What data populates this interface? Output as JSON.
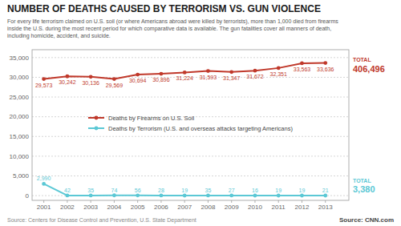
{
  "chart_data": {
    "type": "line",
    "title": "NUMBER OF DEATHS CAUSED BY TERRORISM VS. GUN VIOLENCE",
    "subtitle": "For every life terrorism claimed on U.S. soil (or where Americans abroad were killed by terrorists), more than 1,000 died from firearms\ninside the U.S. during the most recent period for which comparative data is available. The gun fatalities cover all manners of death,\nincluding homicide, accident, and suicide.",
    "x": [
      2001,
      2002,
      2003,
      2004,
      2005,
      2006,
      2007,
      2008,
      2009,
      2010,
      2011,
      2012,
      2013
    ],
    "xlim": [
      2000.5,
      2014.0
    ],
    "xticks": [
      2001,
      2002,
      2003,
      2004,
      2005,
      2006,
      2007,
      2008,
      2009,
      2010,
      2011,
      2012,
      2013
    ],
    "ylim": [
      -1200,
      37000
    ],
    "yticks": [
      0,
      {
        "value": 5000,
        "label": "5,000"
      },
      {
        "value": 10000,
        "label": "10,000"
      },
      {
        "value": 15000,
        "label": "15,000"
      },
      {
        "value": 20000,
        "label": "20,000"
      },
      {
        "value": 25000,
        "label": "25,000"
      },
      {
        "value": 30000,
        "label": "30,000"
      },
      {
        "value": 35000,
        "label": "35,000"
      }
    ],
    "grid": true,
    "legend": "center",
    "data_labels": true,
    "marker": "circle",
    "line_style": "solid",
    "sources": [
      "Source: Centers for Disease Control and Prevention, U.S. State Department",
      "Source: CNN.com"
    ],
    "series": [
      {
        "name": "Deaths by Firearms on U.S. Soil",
        "color": "#c0392b",
        "values": [
          29573,
          30242,
          30136,
          29569,
          30694,
          30896,
          31224,
          31593,
          31347,
          31672,
          32351,
          33563,
          33636
        ],
        "value_labels": [
          "29,573",
          "30,242",
          "30,136",
          "29,569",
          "30,694",
          "30,896",
          "31,224",
          "31,593",
          "31,347",
          "31,672",
          "32,351",
          "33,563",
          "33,636"
        ],
        "annotations": [
          "TOTAL",
          "406,496"
        ]
      },
      {
        "name": "Deaths by Terrorism (U.S. and overseas attacks targeting Americans)",
        "color": "#5bc8d5",
        "values": [
          2990,
          42,
          35,
          74,
          56,
          28,
          19,
          35,
          27,
          16,
          19,
          19,
          21
        ],
        "value_labels": [
          "2,990",
          "42",
          "35",
          "74",
          "56",
          "28",
          "19",
          "35",
          "27",
          "16",
          "19",
          "19",
          "21"
        ],
        "annotations": [
          "TOTAL",
          "3,380"
        ]
      }
    ]
  }
}
